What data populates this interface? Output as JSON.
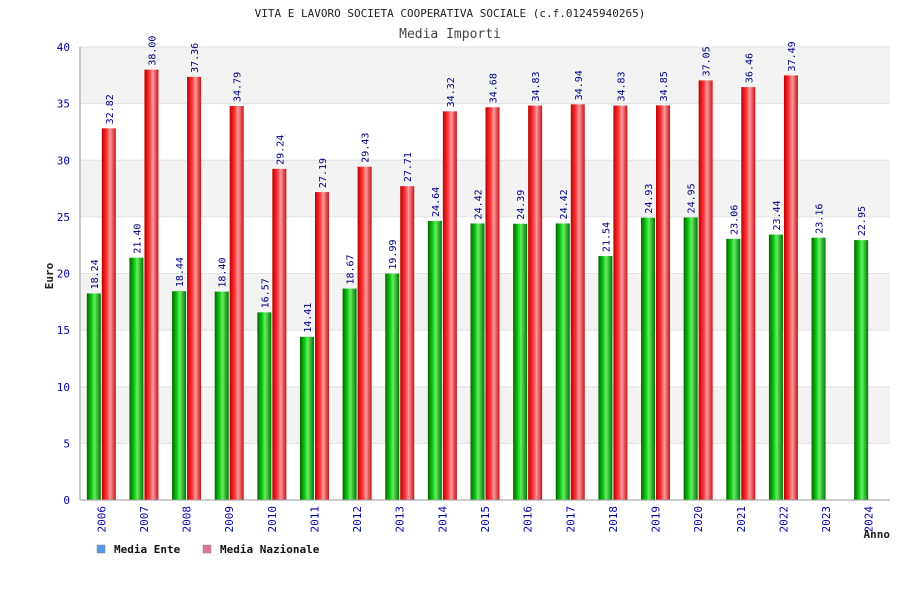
{
  "chart_data": {
    "type": "bar",
    "title": "VITA E LAVORO SOCIETA COOPERATIVA SOCIALE (c.f.01245940265)",
    "subtitle": "Media Importi",
    "ylabel": "Euro",
    "xlabel": "Anno",
    "ylim": [
      0,
      40
    ],
    "yticks": [
      "0",
      "5",
      "10",
      "15",
      "20",
      "25",
      "30",
      "35",
      "40"
    ],
    "categories": [
      "2006",
      "2007",
      "2008",
      "2009",
      "2010",
      "2011",
      "2012",
      "2013",
      "2014",
      "2015",
      "2016",
      "2017",
      "2018",
      "2019",
      "2020",
      "2021",
      "2022",
      "2023",
      "2024"
    ],
    "series": [
      {
        "name": "Media Ente",
        "legend_color": "#5599ee",
        "bar_color": "#00aa00",
        "values": [
          18.24,
          21.4,
          18.44,
          18.4,
          16.57,
          14.41,
          18.67,
          19.99,
          24.64,
          24.42,
          24.39,
          24.42,
          21.54,
          24.93,
          24.95,
          23.06,
          23.44,
          23.16,
          22.95
        ],
        "labels": [
          "18.24",
          "21.40",
          "18.44",
          "18.40",
          "16.57",
          "14.41",
          "18.67",
          "19.99",
          "24.64",
          "24.42",
          "24.39",
          "24.42",
          "21.54",
          "24.93",
          "24.95",
          "23.06",
          "23.44",
          "23.16",
          "22.95"
        ]
      },
      {
        "name": "Media Nazionale",
        "legend_color": "#dd7799",
        "bar_color": "#ee2222",
        "values": [
          32.82,
          38.0,
          37.36,
          34.79,
          29.24,
          27.19,
          29.43,
          27.71,
          34.32,
          34.68,
          34.83,
          34.94,
          34.83,
          34.85,
          37.05,
          36.46,
          37.49,
          null,
          null
        ],
        "labels": [
          "32.82",
          "38.00",
          "37.36",
          "34.79",
          "29.24",
          "27.19",
          "29.43",
          "27.71",
          "34.32",
          "34.68",
          "34.83",
          "34.94",
          "34.83",
          "34.85",
          "37.05",
          "36.46",
          "37.49",
          null,
          null
        ]
      }
    ],
    "legend_position": "bottom-left"
  }
}
